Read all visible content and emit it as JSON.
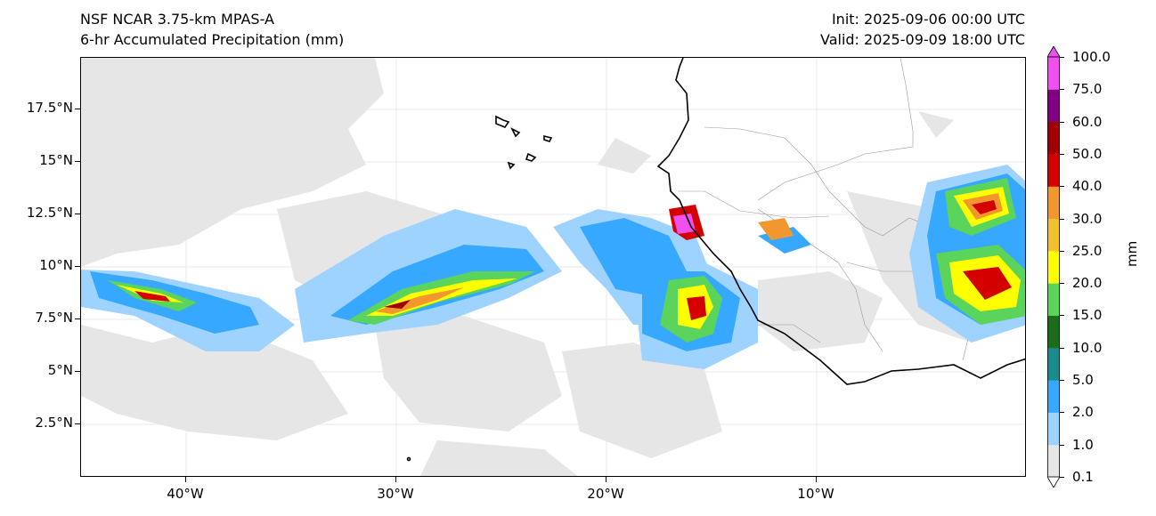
{
  "header": {
    "model": "NSF NCAR 3.75-km MPAS-A",
    "field": "6-hr Accumulated Precipitation (mm)",
    "init": "Init: 2025-09-06 00:00 UTC",
    "valid": "Valid: 2025-09-09 18:00 UTC"
  },
  "axes": {
    "lat_labels": [
      "17.5°N",
      "15°N",
      "12.5°N",
      "10°N",
      "7.5°N",
      "5°N",
      "2.5°N"
    ],
    "lon_labels": [
      "40°W",
      "30°W",
      "20°W",
      "10°W"
    ]
  },
  "colorbar": {
    "unit": "mm",
    "levels": [
      "0.1",
      "1.0",
      "2.0",
      "5.0",
      "10.0",
      "15.0",
      "20.0",
      "25.0",
      "30.0",
      "40.0",
      "50.0",
      "60.0",
      "75.0",
      "100.0"
    ],
    "colors": [
      "#e6e6e6",
      "#9fd3ff",
      "#36a8ff",
      "#1a8c8c",
      "#1a6e1a",
      "#5ad45a",
      "#ffff00",
      "#f2c12e",
      "#f2962e",
      "#d40000",
      "#a00000",
      "#800080",
      "#f050f0"
    ]
  }
}
